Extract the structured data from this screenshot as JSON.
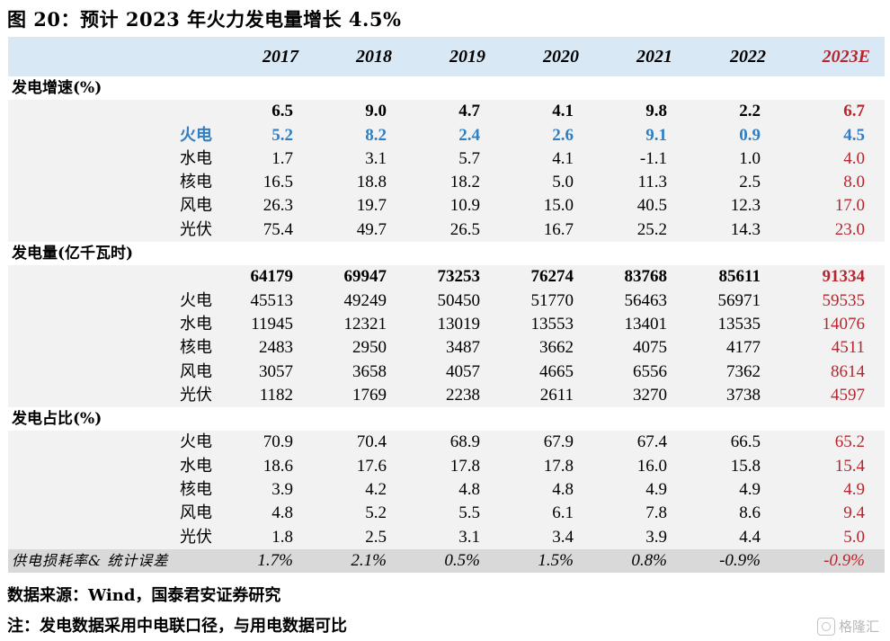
{
  "title": "图 20：预计 2023 年火力发电量增长 4.5%",
  "years": [
    "2017",
    "2018",
    "2019",
    "2020",
    "2021",
    "2022",
    "2023E"
  ],
  "sections": [
    {
      "title": "发电增速(%)",
      "rows": [
        {
          "label": "",
          "style": "total",
          "values": [
            "6.5",
            "9.0",
            "4.7",
            "4.1",
            "9.8",
            "2.2",
            "6.7"
          ]
        },
        {
          "label": "火电",
          "style": "hl",
          "values": [
            "5.2",
            "8.2",
            "2.4",
            "2.6",
            "9.1",
            "0.9",
            "4.5"
          ]
        },
        {
          "label": "水电",
          "style": "",
          "values": [
            "1.7",
            "3.1",
            "5.7",
            "4.1",
            "-1.1",
            "1.0",
            "4.0"
          ]
        },
        {
          "label": "核电",
          "style": "",
          "values": [
            "16.5",
            "18.8",
            "18.2",
            "5.0",
            "11.3",
            "2.5",
            "8.0"
          ]
        },
        {
          "label": "风电",
          "style": "",
          "values": [
            "26.3",
            "19.7",
            "10.9",
            "15.0",
            "40.5",
            "12.3",
            "17.0"
          ]
        },
        {
          "label": "光伏",
          "style": "",
          "values": [
            "75.4",
            "49.7",
            "26.5",
            "16.7",
            "25.2",
            "14.3",
            "23.0"
          ]
        }
      ]
    },
    {
      "title": "发电量(亿千瓦时)",
      "rows": [
        {
          "label": "",
          "style": "total",
          "values": [
            "64179",
            "69947",
            "73253",
            "76274",
            "83768",
            "85611",
            "91334"
          ]
        },
        {
          "label": "火电",
          "style": "",
          "values": [
            "45513",
            "49249",
            "50450",
            "51770",
            "56463",
            "56971",
            "59535"
          ]
        },
        {
          "label": "水电",
          "style": "",
          "values": [
            "11945",
            "12321",
            "13019",
            "13553",
            "13401",
            "13535",
            "14076"
          ]
        },
        {
          "label": "核电",
          "style": "",
          "values": [
            "2483",
            "2950",
            "3487",
            "3662",
            "4075",
            "4177",
            "4511"
          ]
        },
        {
          "label": "风电",
          "style": "",
          "values": [
            "3057",
            "3658",
            "4057",
            "4665",
            "6556",
            "7362",
            "8614"
          ]
        },
        {
          "label": "光伏",
          "style": "",
          "values": [
            "1182",
            "1769",
            "2238",
            "2611",
            "3270",
            "3738",
            "4597"
          ]
        }
      ]
    },
    {
      "title": "发电占比(%)",
      "rows": [
        {
          "label": "火电",
          "style": "",
          "values": [
            "70.9",
            "70.4",
            "68.9",
            "67.9",
            "67.4",
            "66.5",
            "65.2"
          ]
        },
        {
          "label": "水电",
          "style": "",
          "values": [
            "18.6",
            "17.6",
            "17.8",
            "17.8",
            "16.0",
            "15.8",
            "15.4"
          ]
        },
        {
          "label": "核电",
          "style": "",
          "values": [
            "3.9",
            "4.2",
            "4.8",
            "4.8",
            "4.9",
            "4.9",
            "4.9"
          ]
        },
        {
          "label": "风电",
          "style": "",
          "values": [
            "4.8",
            "5.2",
            "5.5",
            "6.1",
            "7.8",
            "8.6",
            "9.4"
          ]
        },
        {
          "label": "光伏",
          "style": "",
          "values": [
            "1.8",
            "2.5",
            "3.1",
            "3.4",
            "3.9",
            "4.4",
            "5.0"
          ]
        }
      ]
    }
  ],
  "loss_row": {
    "label": "供电损耗率& 统计误差",
    "values": [
      "1.7%",
      "2.1%",
      "0.5%",
      "1.5%",
      "0.8%",
      "-0.9%",
      "-0.9%"
    ]
  },
  "source": "数据来源：Wind，国泰君安证券研究",
  "footnote": "注：发电数据采用中电联口径，与用电数据可比",
  "watermark": "格隆汇",
  "colors": {
    "header_bg": "#d9e8f5",
    "row_bg": "#f2f2f2",
    "loss_bg": "#d9d9d9",
    "estimate": "#b7252e",
    "highlight": "#2f7fc2"
  }
}
